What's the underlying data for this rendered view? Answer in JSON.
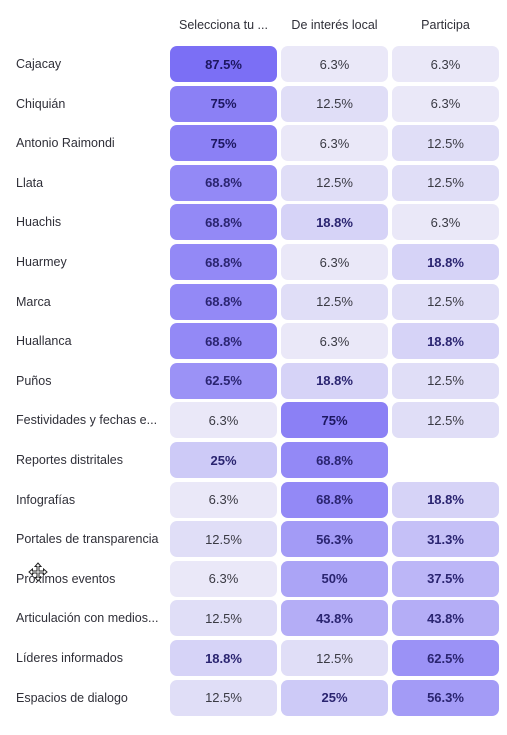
{
  "chart_data": {
    "type": "heatmap",
    "columns": [
      "Selecciona tu ...",
      "De interés local",
      "Participa"
    ],
    "rows": [
      {
        "label": "Cajacay",
        "values": [
          87.5,
          6.3,
          6.3
        ],
        "display": [
          "87.5%",
          "6.3%",
          "6.3%"
        ]
      },
      {
        "label": "Chiquián",
        "values": [
          75,
          12.5,
          6.3
        ],
        "display": [
          "75%",
          "12.5%",
          "6.3%"
        ]
      },
      {
        "label": "Antonio Raimondi",
        "values": [
          75,
          6.3,
          12.5
        ],
        "display": [
          "75%",
          "6.3%",
          "12.5%"
        ]
      },
      {
        "label": "Llata",
        "values": [
          68.8,
          12.5,
          12.5
        ],
        "display": [
          "68.8%",
          "12.5%",
          "12.5%"
        ]
      },
      {
        "label": "Huachis",
        "values": [
          68.8,
          18.8,
          6.3
        ],
        "display": [
          "68.8%",
          "18.8%",
          "6.3%"
        ]
      },
      {
        "label": "Huarmey",
        "values": [
          68.8,
          6.3,
          18.8
        ],
        "display": [
          "68.8%",
          "6.3%",
          "18.8%"
        ]
      },
      {
        "label": "Marca",
        "values": [
          68.8,
          12.5,
          12.5
        ],
        "display": [
          "68.8%",
          "12.5%",
          "12.5%"
        ]
      },
      {
        "label": "Huallanca",
        "values": [
          68.8,
          6.3,
          18.8
        ],
        "display": [
          "68.8%",
          "6.3%",
          "18.8%"
        ]
      },
      {
        "label": "Puños",
        "values": [
          62.5,
          18.8,
          12.5
        ],
        "display": [
          "62.5%",
          "18.8%",
          "12.5%"
        ]
      },
      {
        "label": "Festividades y fechas e...",
        "values": [
          6.3,
          75,
          12.5
        ],
        "display": [
          "6.3%",
          "75%",
          "12.5%"
        ]
      },
      {
        "label": "Reportes distritales",
        "values": [
          25,
          68.8,
          null
        ],
        "display": [
          "25%",
          "68.8%",
          ""
        ]
      },
      {
        "label": "Infografías",
        "values": [
          6.3,
          68.8,
          18.8
        ],
        "display": [
          "6.3%",
          "68.8%",
          "18.8%"
        ]
      },
      {
        "label": "Portales de transparencia",
        "values": [
          12.5,
          56.3,
          31.3
        ],
        "display": [
          "12.5%",
          "56.3%",
          "31.3%"
        ]
      },
      {
        "label": "Próximos eventos",
        "values": [
          6.3,
          50,
          37.5
        ],
        "display": [
          "6.3%",
          "50%",
          "37.5%"
        ]
      },
      {
        "label": "Articulación con medios...",
        "values": [
          12.5,
          43.8,
          43.8
        ],
        "display": [
          "12.5%",
          "43.8%",
          "43.8%"
        ]
      },
      {
        "label": "Líderes informados",
        "values": [
          18.8,
          12.5,
          62.5
        ],
        "display": [
          "18.8%",
          "12.5%",
          "62.5%"
        ]
      },
      {
        "label": "Espacios de dialogo",
        "values": [
          12.5,
          25,
          56.3
        ],
        "display": [
          "12.5%",
          "25%",
          "56.3%"
        ]
      }
    ],
    "color_scale": {
      "low": "#f5f5f8",
      "high": "#7b6ff5"
    }
  },
  "cursor_icon": "move-cursor-icon"
}
